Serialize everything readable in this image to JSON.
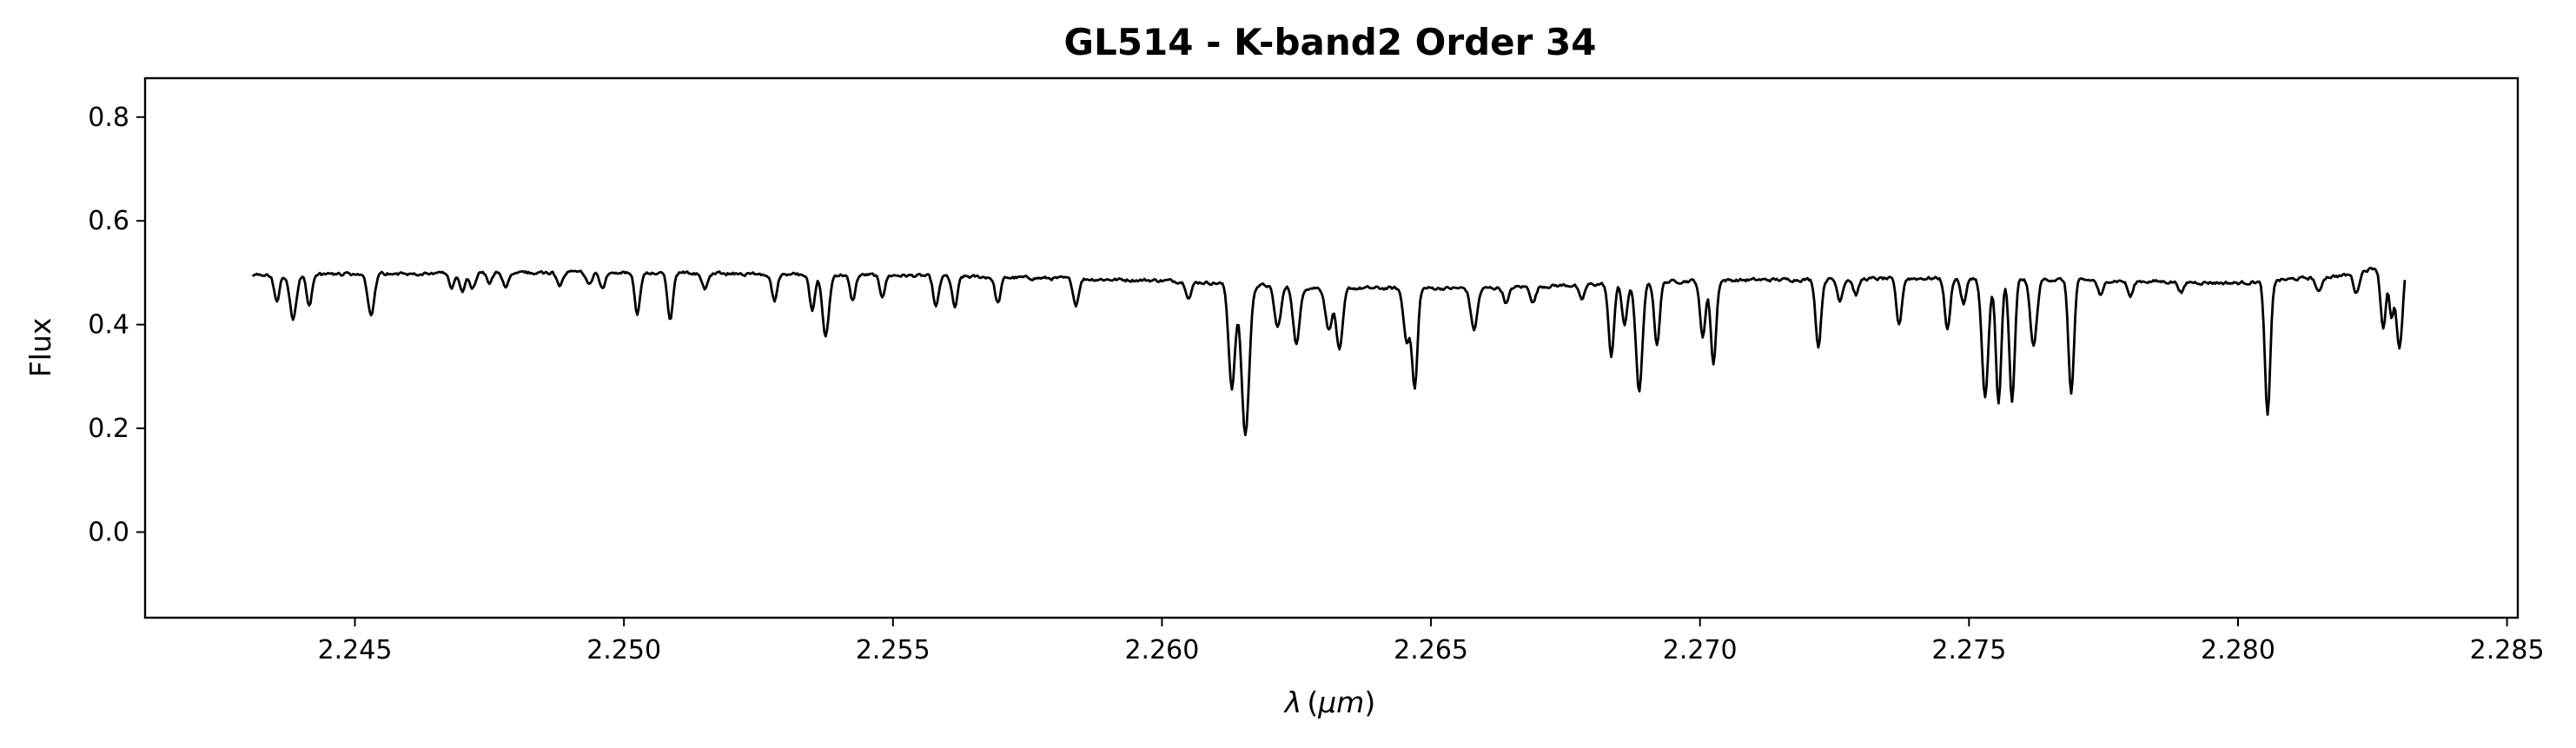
{
  "chart_data": {
    "type": "line",
    "title": "GL514 - K-band2 Order 34",
    "xlabel": "λ (μm)",
    "ylabel": "Flux",
    "xlim": [
      2.2411,
      2.2852
    ],
    "ylim": [
      -0.165,
      0.875
    ],
    "xticks": [
      2.245,
      2.25,
      2.255,
      2.26,
      2.265,
      2.27,
      2.275,
      2.28,
      2.285
    ],
    "xtick_labels": [
      "2.245",
      "2.250",
      "2.255",
      "2.260",
      "2.265",
      "2.270",
      "2.275",
      "2.280",
      "2.285"
    ],
    "yticks": [
      0.0,
      0.2,
      0.4,
      0.6,
      0.8
    ],
    "ytick_labels": [
      "0.0",
      "0.2",
      "0.4",
      "0.6",
      "0.8"
    ],
    "grid": false,
    "line_color": "#000000",
    "continuum_range": [
      2.2431,
      2.2831
    ],
    "continuum_anchors": [
      [
        2.2431,
        0.495
      ],
      [
        2.247,
        0.5
      ],
      [
        2.25,
        0.5
      ],
      [
        2.255,
        0.495
      ],
      [
        2.26,
        0.485
      ],
      [
        2.263,
        0.47
      ],
      [
        2.266,
        0.47
      ],
      [
        2.27,
        0.485
      ],
      [
        2.275,
        0.49
      ],
      [
        2.28,
        0.48
      ],
      [
        2.282,
        0.495
      ],
      [
        2.2831,
        0.525
      ]
    ],
    "absorption_lines": [
      [
        2.24355,
        0.05,
        5e-05
      ],
      [
        2.24385,
        0.085,
        6e-05
      ],
      [
        2.24415,
        0.06,
        5e-05
      ],
      [
        2.2453,
        0.08,
        6e-05
      ],
      [
        2.2468,
        0.03,
        5e-05
      ],
      [
        2.247,
        0.035,
        5e-05
      ],
      [
        2.24718,
        0.035,
        5e-05
      ],
      [
        2.2475,
        0.02,
        5e-05
      ],
      [
        2.2478,
        0.03,
        5e-05
      ],
      [
        2.2488,
        0.025,
        5e-05
      ],
      [
        2.24935,
        0.025,
        5e-05
      ],
      [
        2.2496,
        0.03,
        5e-05
      ],
      [
        2.25025,
        0.08,
        5e-05
      ],
      [
        2.25086,
        0.09,
        5e-05
      ],
      [
        2.2515,
        0.03,
        5e-05
      ],
      [
        2.2528,
        0.05,
        5e-05
      ],
      [
        2.2535,
        0.07,
        5e-05
      ],
      [
        2.25375,
        0.12,
        6e-05
      ],
      [
        2.25425,
        0.05,
        5e-05
      ],
      [
        2.2548,
        0.04,
        5e-05
      ],
      [
        2.2558,
        0.06,
        5e-05
      ],
      [
        2.25615,
        0.06,
        5e-05
      ],
      [
        2.25695,
        0.05,
        5e-05
      ],
      [
        2.2584,
        0.05,
        5e-05
      ],
      [
        2.2605,
        0.03,
        5e-05
      ],
      [
        2.2613,
        0.2,
        6e-05
      ],
      [
        2.26155,
        0.29,
        7e-05
      ],
      [
        2.26215,
        0.08,
        6e-05
      ],
      [
        2.2625,
        0.11,
        6e-05
      ],
      [
        2.2631,
        0.08,
        6e-05
      ],
      [
        2.2633,
        0.12,
        6e-05
      ],
      [
        2.26455,
        0.1,
        6e-05
      ],
      [
        2.2647,
        0.19,
        5e-05
      ],
      [
        2.2658,
        0.08,
        6e-05
      ],
      [
        2.2664,
        0.03,
        5e-05
      ],
      [
        2.2669,
        0.03,
        5e-05
      ],
      [
        2.2678,
        0.03,
        5e-05
      ],
      [
        2.26835,
        0.14,
        5e-05
      ],
      [
        2.2686,
        0.08,
        5e-05
      ],
      [
        2.26887,
        0.21,
        6e-05
      ],
      [
        2.2692,
        0.12,
        5e-05
      ],
      [
        2.27005,
        0.11,
        5e-05
      ],
      [
        2.27025,
        0.16,
        5e-05
      ],
      [
        2.2722,
        0.13,
        5e-05
      ],
      [
        2.2726,
        0.04,
        5e-05
      ],
      [
        2.2729,
        0.03,
        5e-05
      ],
      [
        2.2737,
        0.09,
        5e-05
      ],
      [
        2.2746,
        0.1,
        5e-05
      ],
      [
        2.2749,
        0.05,
        5e-05
      ],
      [
        2.2753,
        0.23,
        6e-05
      ],
      [
        2.27555,
        0.24,
        5e-05
      ],
      [
        2.2758,
        0.24,
        5e-05
      ],
      [
        2.2762,
        0.13,
        6e-05
      ],
      [
        2.2769,
        0.22,
        5e-05
      ],
      [
        2.27745,
        0.03,
        5e-05
      ],
      [
        2.278,
        0.03,
        5e-05
      ],
      [
        2.27895,
        0.02,
        5e-05
      ],
      [
        2.28055,
        0.26,
        5e-05
      ],
      [
        2.2815,
        0.03,
        5e-05
      ],
      [
        2.2822,
        0.04,
        5e-05
      ],
      [
        2.2827,
        0.12,
        5e-05
      ],
      [
        2.28285,
        0.1,
        4e-05
      ],
      [
        2.283,
        0.17,
        6e-05
      ]
    ],
    "noise_amplitude": 0.006,
    "n_points": 1600
  }
}
